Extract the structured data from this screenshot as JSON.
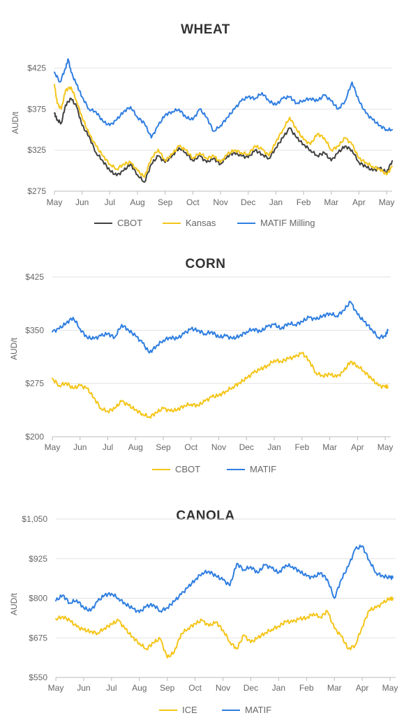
{
  "chart_data": [
    {
      "type": "line",
      "title": "WHEAT",
      "ylabel": "AUD/t",
      "ylim": [
        275,
        440
      ],
      "yticks": [
        275,
        325,
        375,
        425
      ],
      "ytick_labels": [
        "$275",
        "$325",
        "$375",
        "$425"
      ],
      "x_ticks": [
        "May",
        "Jun",
        "Jul",
        "Aug",
        "Sep",
        "Oct",
        "Nov",
        "Dec",
        "Jan",
        "Feb",
        "Mar",
        "Apr",
        "May"
      ],
      "grid": true,
      "legend": "bottom",
      "series": [
        {
          "name": "CBOT",
          "color": "#404040",
          "x": [
            0,
            0.1,
            0.25,
            0.4,
            0.6,
            0.8,
            1,
            1.25,
            1.5,
            1.75,
            2,
            2.25,
            2.5,
            2.75,
            3,
            3.25,
            3.5,
            3.75,
            4,
            4.25,
            4.5,
            4.75,
            5,
            5.25,
            5.5,
            5.75,
            6,
            6.25,
            6.5,
            6.75,
            7,
            7.25,
            7.5,
            7.75,
            8,
            8.25,
            8.5,
            8.75,
            9,
            9.25,
            9.5,
            9.75,
            10,
            10.25,
            10.5,
            10.75,
            11,
            11.25,
            11.5,
            11.75,
            12,
            12.2
          ],
          "values": [
            370,
            362,
            358,
            380,
            388,
            378,
            355,
            342,
            322,
            312,
            300,
            294,
            300,
            308,
            295,
            286,
            308,
            318,
            310,
            318,
            328,
            322,
            312,
            318,
            310,
            315,
            308,
            318,
            322,
            318,
            316,
            325,
            320,
            315,
            328,
            340,
            352,
            340,
            332,
            325,
            318,
            322,
            312,
            322,
            330,
            325,
            310,
            305,
            300,
            303,
            298,
            312
          ]
        },
        {
          "name": "Kansas",
          "color": "#f5c518",
          "x": [
            0,
            0.1,
            0.25,
            0.4,
            0.6,
            0.8,
            1,
            1.25,
            1.5,
            1.75,
            2,
            2.25,
            2.5,
            2.75,
            3,
            3.25,
            3.5,
            3.75,
            4,
            4.25,
            4.5,
            4.75,
            5,
            5.25,
            5.5,
            5.75,
            6,
            6.25,
            6.5,
            6.75,
            7,
            7.25,
            7.5,
            7.75,
            8,
            8.25,
            8.5,
            8.75,
            9,
            9.25,
            9.5,
            9.75,
            10,
            10.25,
            10.5,
            10.75,
            11,
            11.25,
            11.5,
            11.75,
            12,
            12.2
          ],
          "values": [
            405,
            382,
            375,
            398,
            402,
            385,
            365,
            345,
            330,
            318,
            308,
            302,
            308,
            310,
            300,
            292,
            315,
            326,
            312,
            320,
            330,
            325,
            315,
            322,
            315,
            318,
            310,
            320,
            325,
            322,
            320,
            330,
            326,
            318,
            335,
            350,
            365,
            350,
            338,
            332,
            345,
            340,
            325,
            330,
            340,
            332,
            315,
            310,
            305,
            302,
            295,
            305
          ]
        },
        {
          "name": "MATIF Milling",
          "color": "#2f7ee0",
          "x": [
            0,
            0.2,
            0.4,
            0.5,
            0.6,
            0.8,
            1,
            1.25,
            1.5,
            1.75,
            2,
            2.25,
            2.5,
            2.75,
            3,
            3.25,
            3.5,
            3.75,
            4,
            4.25,
            4.5,
            4.75,
            5,
            5.25,
            5.5,
            5.75,
            6,
            6.25,
            6.5,
            6.75,
            7,
            7.25,
            7.5,
            7.75,
            8,
            8.25,
            8.5,
            8.75,
            9,
            9.25,
            9.5,
            9.75,
            10,
            10.25,
            10.5,
            10.75,
            11,
            11.25,
            11.5,
            11.75,
            12,
            12.2
          ],
          "values": [
            420,
            408,
            425,
            436,
            420,
            405,
            390,
            375,
            372,
            360,
            355,
            362,
            372,
            378,
            365,
            358,
            340,
            355,
            368,
            372,
            375,
            365,
            362,
            375,
            365,
            348,
            355,
            365,
            375,
            385,
            390,
            388,
            395,
            385,
            380,
            388,
            390,
            382,
            386,
            388,
            385,
            392,
            385,
            375,
            385,
            408,
            385,
            370,
            362,
            355,
            350,
            350
          ]
        }
      ]
    },
    {
      "type": "line",
      "title": "CORN",
      "ylabel": "AUD/t",
      "ylim": [
        200,
        425
      ],
      "yticks": [
        200,
        275,
        350,
        425
      ],
      "ytick_labels": [
        "$200",
        "$275",
        "$350",
        "$425"
      ],
      "x_ticks": [
        "May",
        "Jun",
        "Jul",
        "Aug",
        "Sep",
        "Oct",
        "Nov",
        "Dec",
        "Jan",
        "Feb",
        "Mar",
        "Apr",
        "May"
      ],
      "grid": true,
      "legend": "bottom",
      "series": [
        {
          "name": "CBOT",
          "color": "#f5c518",
          "x": [
            0,
            0.25,
            0.5,
            0.75,
            1,
            1.25,
            1.5,
            1.75,
            2,
            2.25,
            2.5,
            2.75,
            3,
            3.25,
            3.5,
            3.75,
            4,
            4.25,
            4.5,
            4.75,
            5,
            5.25,
            5.5,
            5.75,
            6,
            6.25,
            6.5,
            6.75,
            7,
            7.25,
            7.5,
            7.75,
            8,
            8.25,
            8.5,
            8.75,
            9,
            9.25,
            9.5,
            9.75,
            10,
            10.25,
            10.5,
            10.75,
            11,
            11.25,
            11.5,
            11.75,
            12,
            12.1
          ],
          "values": [
            282,
            272,
            276,
            268,
            272,
            268,
            255,
            240,
            236,
            240,
            250,
            244,
            238,
            232,
            228,
            234,
            240,
            236,
            238,
            244,
            246,
            244,
            250,
            256,
            258,
            264,
            270,
            276,
            282,
            290,
            295,
            300,
            308,
            306,
            310,
            312,
            318,
            308,
            290,
            286,
            288,
            284,
            292,
            306,
            300,
            292,
            282,
            272,
            270,
            270
          ]
        },
        {
          "name": "MATIF",
          "color": "#2f7ee0",
          "x": [
            0,
            0.25,
            0.5,
            0.75,
            1,
            1.25,
            1.5,
            1.75,
            2,
            2.25,
            2.5,
            2.75,
            3,
            3.25,
            3.5,
            3.75,
            4,
            4.25,
            4.5,
            4.75,
            5,
            5.25,
            5.5,
            5.75,
            6,
            6.25,
            6.5,
            6.75,
            7,
            7.25,
            7.5,
            7.75,
            8,
            8.25,
            8.5,
            8.75,
            9,
            9.25,
            9.5,
            9.75,
            10,
            10.25,
            10.5,
            10.75,
            11,
            11.25,
            11.5,
            11.75,
            12,
            12.1
          ],
          "values": [
            348,
            352,
            360,
            368,
            352,
            340,
            338,
            342,
            345,
            340,
            358,
            350,
            342,
            332,
            318,
            328,
            336,
            340,
            338,
            345,
            352,
            350,
            345,
            348,
            340,
            342,
            338,
            342,
            348,
            352,
            348,
            355,
            358,
            352,
            360,
            358,
            362,
            368,
            365,
            370,
            374,
            370,
            378,
            390,
            372,
            362,
            352,
            340,
            342,
            350
          ]
        }
      ]
    },
    {
      "type": "line",
      "title": "CANOLA",
      "ylabel": "AUD/t",
      "ylim": [
        550,
        1050
      ],
      "yticks": [
        550,
        675,
        800,
        925,
        1050
      ],
      "ytick_labels": [
        "$550",
        "$675",
        "$800",
        "$925",
        "$1,050"
      ],
      "x_ticks": [
        "May",
        "Jun",
        "Jul",
        "Aug",
        "Sep",
        "Oct",
        "Nov",
        "Dec",
        "Jan",
        "Feb",
        "Mar",
        "Apr",
        "May"
      ],
      "grid": true,
      "legend": "bottom",
      "series": [
        {
          "name": "ICE",
          "color": "#f5c518",
          "x": [
            0,
            0.25,
            0.5,
            0.75,
            1,
            1.25,
            1.5,
            1.75,
            2,
            2.25,
            2.5,
            2.75,
            3,
            3.25,
            3.5,
            3.75,
            4,
            4.25,
            4.5,
            4.75,
            5,
            5.25,
            5.5,
            5.75,
            6,
            6.25,
            6.5,
            6.75,
            7,
            7.25,
            7.5,
            7.75,
            8,
            8.25,
            8.5,
            8.75,
            9,
            9.25,
            9.5,
            9.75,
            10,
            10.25,
            10.5,
            10.75,
            11,
            11.25,
            11.5,
            11.75,
            12,
            12.1
          ],
          "values": [
            735,
            742,
            730,
            710,
            700,
            695,
            690,
            706,
            718,
            730,
            702,
            678,
            658,
            640,
            660,
            672,
            612,
            630,
            688,
            705,
            720,
            730,
            712,
            725,
            700,
            662,
            640,
            684,
            660,
            675,
            690,
            702,
            712,
            726,
            725,
            735,
            738,
            752,
            740,
            760,
            705,
            680,
            640,
            652,
            710,
            762,
            770,
            785,
            800,
            800
          ]
        },
        {
          "name": "MATIF",
          "color": "#2f7ee0",
          "x": [
            0,
            0.25,
            0.5,
            0.75,
            1,
            1.25,
            1.5,
            1.75,
            2,
            2.25,
            2.5,
            2.75,
            3,
            3.25,
            3.5,
            3.75,
            4,
            4.25,
            4.5,
            4.75,
            5,
            5.25,
            5.5,
            5.75,
            6,
            6.25,
            6.5,
            6.75,
            7,
            7.25,
            7.5,
            7.75,
            8,
            8.25,
            8.5,
            8.75,
            9,
            9.25,
            9.5,
            9.75,
            10,
            10.25,
            10.5,
            10.75,
            11,
            11.25,
            11.5,
            11.75,
            12,
            12.1
          ],
          "values": [
            792,
            810,
            785,
            795,
            770,
            760,
            790,
            810,
            815,
            800,
            782,
            768,
            755,
            775,
            780,
            760,
            770,
            790,
            812,
            835,
            858,
            880,
            885,
            870,
            858,
            840,
            910,
            890,
            900,
            880,
            905,
            895,
            880,
            905,
            900,
            885,
            870,
            865,
            880,
            860,
            800,
            860,
            900,
            955,
            965,
            920,
            880,
            870,
            865,
            865
          ]
        }
      ]
    }
  ]
}
